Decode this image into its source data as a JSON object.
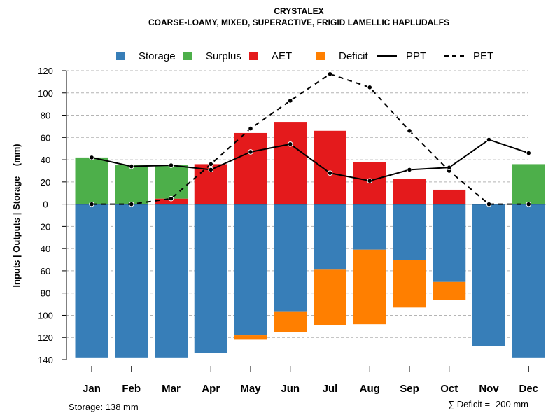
{
  "chart_data": {
    "type": "bar",
    "title": "CRYSTALEX",
    "subtitle": "COARSE-LOAMY, MIXED, SUPERACTIVE, FRIGID LAMELLIC HAPLUDALFS",
    "ylabel": "Inputs | Outputs | Storage    (mm)",
    "ylim": [
      -140,
      120
    ],
    "yticks": [
      120,
      100,
      80,
      60,
      40,
      20,
      0,
      -20,
      -40,
      -60,
      -80,
      -100,
      -120,
      -140
    ],
    "ytick_labels": [
      "120",
      "100",
      "80",
      "60",
      "40",
      "20",
      "0",
      "20",
      "40",
      "60",
      "80",
      "100",
      "120",
      "140"
    ],
    "grid": true,
    "categories": [
      "Jan",
      "Feb",
      "Mar",
      "Apr",
      "May",
      "Jun",
      "Jul",
      "Aug",
      "Sep",
      "Oct",
      "Nov",
      "Dec"
    ],
    "legend": [
      {
        "key": "storage",
        "label": "Storage",
        "kind": "box",
        "color": "#377eb8"
      },
      {
        "key": "surplus",
        "label": "Surplus",
        "kind": "box",
        "color": "#4daf4a"
      },
      {
        "key": "aet",
        "label": "AET",
        "kind": "box",
        "color": "#e41a1c"
      },
      {
        "key": "deficit",
        "label": "Deficit",
        "kind": "box",
        "color": "#ff7f00"
      },
      {
        "key": "ppt",
        "label": "PPT",
        "kind": "solid"
      },
      {
        "key": "pet",
        "label": "PET",
        "kind": "dashed"
      }
    ],
    "series": {
      "storage": {
        "name": "Storage",
        "values": [
          138,
          138,
          138,
          134,
          118,
          97,
          59,
          41,
          50,
          70,
          128,
          138
        ]
      },
      "deficit": {
        "name": "Deficit",
        "values": [
          0,
          0,
          0,
          0,
          4,
          18,
          50,
          67,
          43,
          16,
          0,
          0
        ]
      },
      "aet": {
        "name": "AET",
        "values": [
          0,
          0,
          5,
          36,
          64,
          74,
          66,
          38,
          23,
          13,
          0,
          0
        ]
      },
      "surplus": {
        "name": "Surplus",
        "values": [
          42,
          35,
          30,
          0,
          0,
          0,
          0,
          0,
          0,
          0,
          0,
          36
        ]
      },
      "ppt": {
        "name": "PPT",
        "values": [
          42,
          34,
          35,
          31,
          47,
          54,
          28,
          21,
          31,
          33,
          58,
          46
        ]
      },
      "pet": {
        "name": "PET",
        "values": [
          0,
          0,
          5,
          36,
          68,
          93,
          117,
          105,
          66,
          30,
          0,
          0
        ]
      }
    }
  },
  "footer": {
    "storage": "Storage: 138 mm",
    "deficit": "∑ Deficit = -200 mm"
  }
}
